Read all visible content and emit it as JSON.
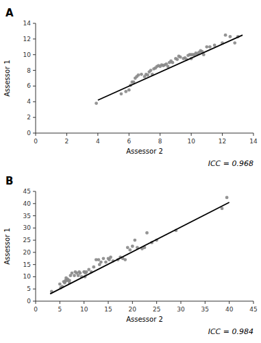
{
  "chart_data": [
    {
      "type": "scatter",
      "title": "A",
      "x_label": "Assessor 2",
      "y_label": "Assessor 1",
      "annotations": [
        "ICC = 0.968"
      ],
      "xlim": [
        0,
        14
      ],
      "ylim": [
        0,
        14
      ],
      "xticks": [
        0,
        2,
        4,
        6,
        8,
        10,
        12,
        14
      ],
      "yticks": [
        0,
        2,
        4,
        6,
        8,
        10,
        12,
        14
      ],
      "series": [
        {
          "type": "scatter",
          "color": "#888888",
          "x": [
            3.9,
            5.5,
            5.8,
            6.0,
            6.1,
            6.2,
            6.3,
            6.4,
            6.5,
            6.6,
            6.8,
            7.0,
            7.1,
            7.2,
            7.3,
            7.4,
            7.5,
            7.6,
            7.7,
            7.8,
            7.9,
            8.0,
            8.1,
            8.2,
            8.3,
            8.4,
            8.5,
            8.6,
            8.7,
            8.8,
            9.0,
            9.1,
            9.2,
            9.3,
            9.5,
            9.6,
            9.7,
            9.8,
            9.9,
            10.0,
            10.0,
            10.1,
            10.2,
            10.3,
            10.4,
            10.5,
            10.6,
            10.7,
            10.8,
            11.0,
            11.2,
            11.5,
            12.0,
            12.2,
            12.5,
            12.8,
            13.0
          ],
          "values": [
            3.8,
            5.0,
            5.3,
            5.5,
            6.1,
            6.5,
            6.5,
            7.0,
            7.2,
            7.4,
            7.5,
            7.2,
            7.5,
            7.4,
            7.8,
            8.0,
            7.5,
            8.2,
            8.3,
            8.5,
            8.6,
            8.5,
            8.7,
            8.6,
            8.7,
            8.8,
            8.5,
            9.0,
            9.2,
            9.0,
            9.5,
            9.4,
            9.8,
            9.7,
            9.5,
            9.6,
            9.4,
            9.9,
            10.0,
            9.5,
            10.0,
            10.0,
            10.0,
            10.2,
            10.1,
            10.3,
            10.5,
            10.4,
            10.0,
            11.0,
            11.0,
            11.2,
            11.5,
            12.5,
            12.3,
            11.5,
            12.3
          ]
        },
        {
          "type": "line",
          "color": "#000000",
          "x": [
            4.0,
            13.3
          ],
          "values": [
            4.2,
            12.5
          ]
        }
      ]
    },
    {
      "type": "scatter",
      "title": "B",
      "x_label": "Assessor 2",
      "y_label": "Assessor 1",
      "annotations": [
        "ICC = 0.984"
      ],
      "xlim": [
        0,
        45
      ],
      "ylim": [
        0,
        45
      ],
      "xticks": [
        0,
        5,
        10,
        15,
        20,
        25,
        30,
        35,
        40,
        45
      ],
      "yticks": [
        0,
        5,
        10,
        15,
        20,
        25,
        30,
        35,
        40,
        45
      ],
      "series": [
        {
          "type": "scatter",
          "color": "#888888",
          "x": [
            3.3,
            5.0,
            5.2,
            5.5,
            5.8,
            6.0,
            6.1,
            6.2,
            6.3,
            6.5,
            6.6,
            6.8,
            7.0,
            7.0,
            7.2,
            7.5,
            8.0,
            8.2,
            8.5,
            8.8,
            9.0,
            9.2,
            9.5,
            10.0,
            10.1,
            10.2,
            10.3,
            10.5,
            11.0,
            11.5,
            12.0,
            12.5,
            13.0,
            13.2,
            13.5,
            14.0,
            14.5,
            15.0,
            15.2,
            15.5,
            16.0,
            17.0,
            17.5,
            18.0,
            18.5,
            19.0,
            19.5,
            20.0,
            20.5,
            21.0,
            22.0,
            22.5,
            23.0,
            24.0,
            25.0,
            29.0,
            38.5,
            39.5
          ],
          "values": [
            4.0,
            7.0,
            5.5,
            6.0,
            8.0,
            7.5,
            8.0,
            8.5,
            9.5,
            8.5,
            9.0,
            8.5,
            7.5,
            8.5,
            10.5,
            11.5,
            10.5,
            12.0,
            11.5,
            10.5,
            12.0,
            11.5,
            10.0,
            12.0,
            12.0,
            10.0,
            11.5,
            12.0,
            13.0,
            12.0,
            14.0,
            17.0,
            17.0,
            15.0,
            16.0,
            17.5,
            16.0,
            17.5,
            17.0,
            18.0,
            16.5,
            17.0,
            18.0,
            17.5,
            17.0,
            22.0,
            21.0,
            22.5,
            25.0,
            22.0,
            21.5,
            22.0,
            28.0,
            24.0,
            25.0,
            29.0,
            38.0,
            42.5
          ]
        },
        {
          "type": "line",
          "color": "#000000",
          "x": [
            3.0,
            40.0
          ],
          "values": [
            3.0,
            40.5
          ]
        }
      ]
    }
  ]
}
